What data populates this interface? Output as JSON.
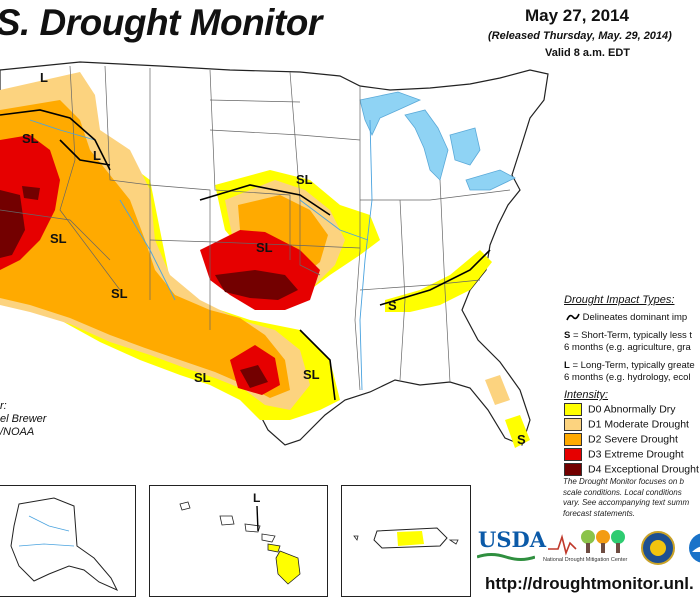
{
  "header": {
    "title": ".S. Drought Monitor",
    "date": "May 27, 2014",
    "released": "(Released Thursday, May. 29, 2014)",
    "valid": "Valid 8 a.m. EDT"
  },
  "impact_types": {
    "title": "Drought Impact Types:",
    "line_symbol_text": "Delineates dominant imp",
    "s_key": "S",
    "s_text_1": " = Short-Term, typically less t",
    "s_text_2": "6 months (e.g. agriculture, gra",
    "l_key": "L",
    "l_text_1": " = Long-Term, typically greate",
    "l_text_2": "6 months (e.g. hydrology, ecol"
  },
  "intensity": {
    "title": "Intensity:",
    "levels": [
      {
        "label": "D0 Abnormally Dry",
        "color": "#ffff00"
      },
      {
        "label": "D1 Moderate Drought",
        "color": "#fcd37f"
      },
      {
        "label": "D2 Severe Drought",
        "color": "#ffaa00"
      },
      {
        "label": "D3 Extreme Drought",
        "color": "#e60000"
      },
      {
        "label": "D4 Exceptional Drought",
        "color": "#730000"
      }
    ]
  },
  "note": {
    "line1": "The Drought Monitor focuses on b",
    "line2": "scale conditions. Local conditions",
    "line3": "vary. See accompanying text summ",
    "line4": "forecast statements."
  },
  "author": {
    "line1": "r:",
    "line2": "el Brewer",
    "line3": "/NOAA"
  },
  "map_labels": {
    "l_nw": "L",
    "sl_or": "SL",
    "l_id": "L",
    "sl_ca": "SL",
    "sl_nv": "SL",
    "sl_az": "SL",
    "sl_ne": "SL",
    "sl_ks": "SL",
    "sl_nm": "SL",
    "sl_tx": "SL",
    "s_tn": "S",
    "s_fl": "S",
    "l_hi": "L"
  },
  "logos": {
    "usda": "USDA",
    "ndmc": "National Drought Mitigation Center"
  },
  "footer": {
    "url": "http://droughtmonitor.unl."
  }
}
